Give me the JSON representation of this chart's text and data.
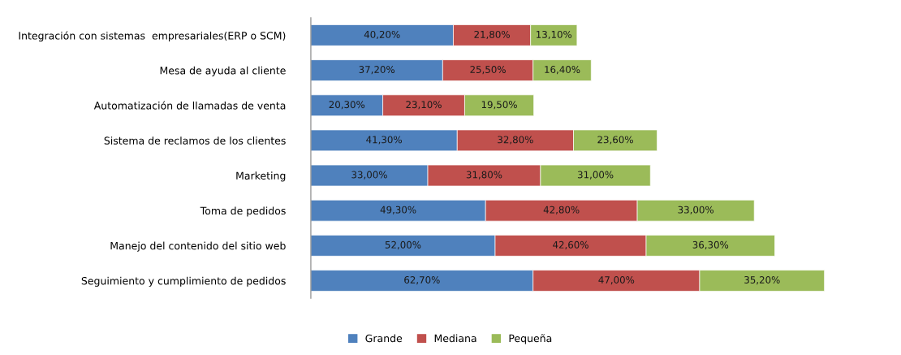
{
  "chart_data": {
    "type": "bar",
    "orientation": "horizontal",
    "stacked": true,
    "legend": "bottom",
    "categories": [
      "Integración con sistemas  empresariales(ERP o SCM)",
      "Mesa de ayuda al cliente",
      "Automatización de llamadas de venta",
      "Sistema de reclamos de los clientes",
      "Marketing",
      "Toma de pedidos",
      "Manejo del contenido del sitio web",
      "Seguimiento y cumplimiento de pedidos"
    ],
    "series": [
      {
        "name": "Grande",
        "color": "#4f81bd",
        "values": [
          40.2,
          37.2,
          20.3,
          41.3,
          33.0,
          49.3,
          52.0,
          62.7
        ],
        "value_labels": [
          "40,20%",
          "37,20%",
          "20,30%",
          "41,30%",
          "33,00%",
          "49,30%",
          "52,00%",
          "62,70%"
        ]
      },
      {
        "name": "Mediana",
        "color": "#c0504d",
        "values": [
          21.8,
          25.5,
          23.1,
          32.8,
          31.8,
          42.8,
          42.6,
          47.0
        ],
        "value_labels": [
          "21,80%",
          "25,50%",
          "23,10%",
          "32,80%",
          "31,80%",
          "42,80%",
          "42,60%",
          "47,00%"
        ]
      },
      {
        "name": "Pequeña",
        "color": "#9bbb59",
        "values": [
          13.1,
          16.4,
          19.5,
          23.6,
          31.0,
          33.0,
          36.3,
          35.2
        ],
        "value_labels": [
          "13,10%",
          "16,40%",
          "19,50%",
          "23,60%",
          "31,00%",
          "33,00%",
          "36,30%",
          "35,20%"
        ]
      }
    ]
  }
}
